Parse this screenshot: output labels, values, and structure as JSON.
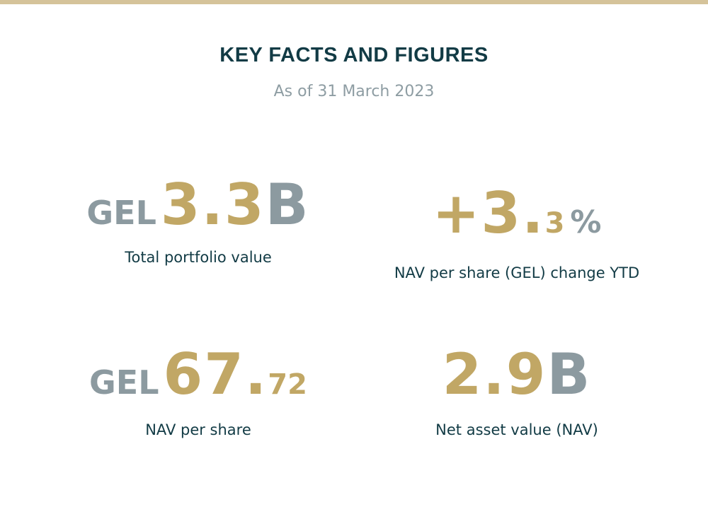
{
  "header": {
    "title": "KEY FACTS AND FIGURES",
    "subtitle": "As of 31 March 2023"
  },
  "colors": {
    "accent_gold": "#c1a765",
    "muted_grey": "#8c9aa0",
    "text_dark": "#123b45",
    "top_rule": "#d5c39a"
  },
  "facts": [
    {
      "prefix": "GEL",
      "number": "3.3",
      "suffix": "B",
      "label": "Total portfolio value"
    },
    {
      "sign": "+",
      "whole": "3.",
      "decimal": "3",
      "suffix": "%",
      "label": "NAV per share (GEL) change YTD"
    },
    {
      "prefix": "GEL",
      "whole": "67.",
      "decimal": "72",
      "label": "NAV per share"
    },
    {
      "number": "2.9",
      "suffix": "B",
      "label": "Net asset value (NAV)"
    }
  ]
}
